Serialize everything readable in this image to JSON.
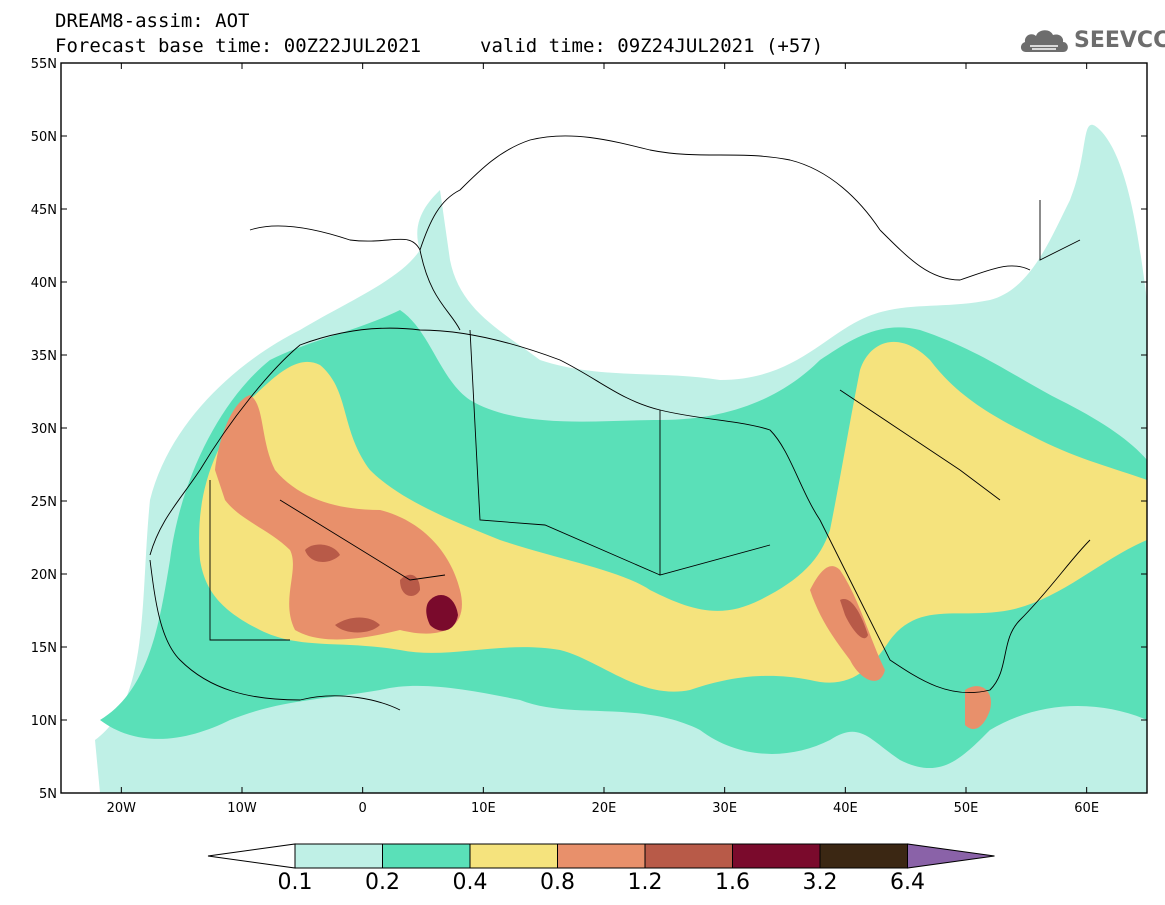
{
  "header": {
    "title_line1": "DREAM8-assim: AOT",
    "title_line2": "Forecast base time: 00Z22JUL2021",
    "valid_time": "valid time: 09Z24JUL2021 (+57)",
    "logo_text": "SEEVCCC",
    "logo_icon": "cloud-logo-icon"
  },
  "map": {
    "y_ticks": [
      "55N",
      "50N",
      "45N",
      "40N",
      "35N",
      "30N",
      "25N",
      "20N",
      "15N",
      "10N",
      "5N"
    ],
    "x_ticks": [
      "20W",
      "10W",
      "0",
      "10E",
      "20E",
      "30E",
      "40E",
      "50E",
      "60E"
    ],
    "lon_range": [
      -25,
      65
    ],
    "lat_range": [
      5,
      55
    ]
  },
  "colorbar": {
    "labels": [
      "0.1",
      "0.2",
      "0.4",
      "0.8",
      "1.2",
      "1.6",
      "3.2",
      "6.4"
    ],
    "colors": [
      "#ffffff",
      "#bff0e6",
      "#5ae0b8",
      "#f5e37d",
      "#e8906b",
      "#b85a48",
      "#7a0a2c",
      "#3b2713",
      "#8a62a8"
    ]
  },
  "legend_colors": {
    "very_low": "#bff0e6",
    "low": "#5ae0b8",
    "moderate": "#f5e37d",
    "high": "#e8906b",
    "very_high": "#b85a48",
    "extreme": "#7a0a2c"
  }
}
